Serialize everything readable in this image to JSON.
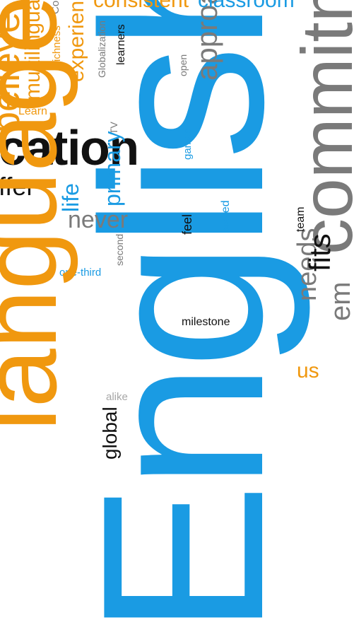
{
  "word_cloud": {
    "colors": {
      "blue": "#1a9be3",
      "orange": "#f0980f",
      "black": "#111111",
      "gray": "#7a7a7a"
    },
    "words": {
      "english": "English",
      "commitment": "commitme",
      "approach": "approach",
      "needs": "needs",
      "em": "em",
      "fits": "fits",
      "team": "team",
      "us": "us",
      "milestone": "milestone",
      "feel": "feel",
      "asked": "asked",
      "games": "games",
      "open": "open",
      "learners": "learners",
      "globalization": "Globalization",
      "experience": "experien",
      "richness": "richness",
      "multilingual": "multilingua",
      "co": "Co",
      "believe": "believe",
      "learn": "Learn",
      "consistent": "consistent",
      "classroom": "classroom",
      "education": "cation",
      "offer": "ffer",
      "tv": "TV",
      "primary": "primary",
      "life": "life",
      "never": "never",
      "second": "second",
      "one_third": "one-third",
      "alike": "alike",
      "global": "global",
      "language": "language"
    }
  }
}
